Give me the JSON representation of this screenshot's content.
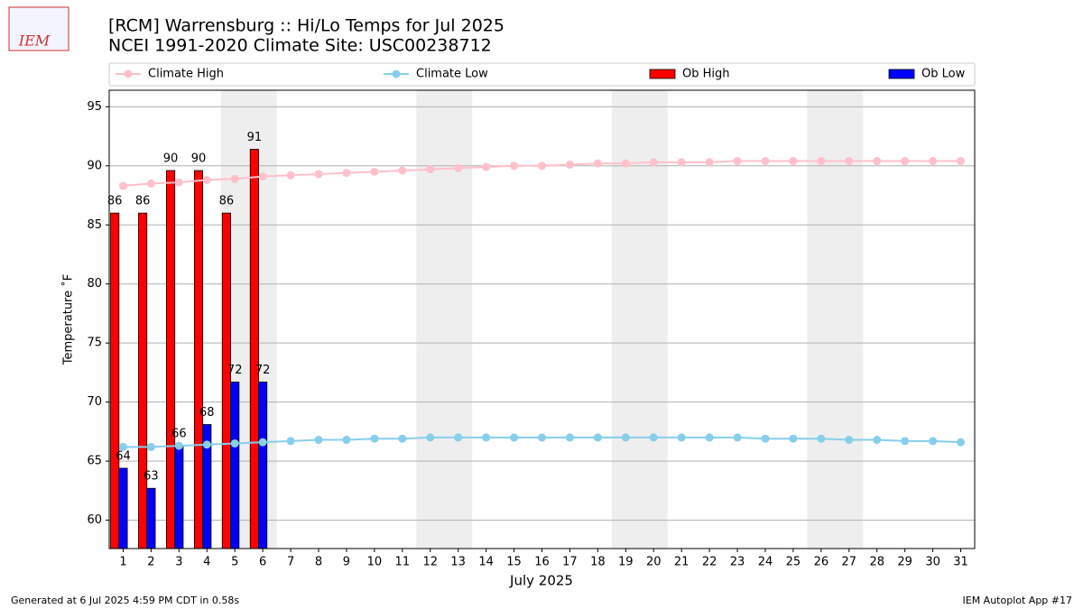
{
  "logo": "IEM",
  "footer_left": "Generated at 6 Jul 2025 4:59 PM CDT in 0.58s",
  "footer_right": "IEM Autoplot App #17",
  "chart_data": {
    "type": "bar_line",
    "title": "[RCM] Warrensburg :: Hi/Lo Temps for Jul 2025",
    "subtitle": "NCEI 1991-2020 Climate Site: USC00238712",
    "x_label": "July 2025",
    "y_label": "Temperature ˚F",
    "x": [
      1,
      2,
      3,
      4,
      5,
      6,
      7,
      8,
      9,
      10,
      11,
      12,
      13,
      14,
      15,
      16,
      17,
      18,
      19,
      20,
      21,
      22,
      23,
      24,
      25,
      26,
      27,
      28,
      29,
      30,
      31
    ],
    "xlim": [
      0.5,
      31.5
    ],
    "xticks": [
      1,
      2,
      3,
      4,
      5,
      6,
      7,
      8,
      9,
      10,
      11,
      12,
      13,
      14,
      15,
      16,
      17,
      18,
      19,
      20,
      21,
      22,
      23,
      24,
      25,
      26,
      27,
      28,
      29,
      30,
      31
    ],
    "ylim": [
      57.6,
      96.4
    ],
    "yticks": [
      60,
      65,
      70,
      75,
      80,
      85,
      90,
      95
    ],
    "grid": true,
    "shaded": [
      [
        4.5,
        6.5
      ],
      [
        11.5,
        13.5
      ],
      [
        18.5,
        20.5
      ],
      [
        25.5,
        27.5
      ]
    ],
    "series": [
      {
        "name": "Climate High",
        "kind": "line",
        "color": "#ffc0cb",
        "values": [
          88.3,
          88.5,
          88.6,
          88.8,
          88.9,
          89.1,
          89.2,
          89.3,
          89.4,
          89.5,
          89.6,
          89.7,
          89.8,
          89.9,
          90.0,
          90.0,
          90.1,
          90.2,
          90.2,
          90.3,
          90.3,
          90.3,
          90.4,
          90.4,
          90.4,
          90.4,
          90.4,
          90.4,
          90.4,
          90.4,
          90.4
        ]
      },
      {
        "name": "Climate Low",
        "kind": "line",
        "color": "#87ceeb",
        "values": [
          66.2,
          66.2,
          66.3,
          66.4,
          66.5,
          66.6,
          66.7,
          66.8,
          66.8,
          66.9,
          66.9,
          67.0,
          67.0,
          67.0,
          67.0,
          67.0,
          67.0,
          67.0,
          67.0,
          67.0,
          67.0,
          67.0,
          67.0,
          66.9,
          66.9,
          66.9,
          66.8,
          66.8,
          66.7,
          66.7,
          66.6
        ]
      },
      {
        "name": "Ob High",
        "kind": "bar",
        "color": "#ff0000",
        "values": [
          86,
          86,
          89.6,
          89.6,
          86,
          91.4,
          null,
          null,
          null,
          null,
          null,
          null,
          null,
          null,
          null,
          null,
          null,
          null,
          null,
          null,
          null,
          null,
          null,
          null,
          null,
          null,
          null,
          null,
          null,
          null,
          null
        ],
        "value_labels": [
          "86",
          "86",
          "90",
          "90",
          "86",
          "91",
          null,
          null,
          null,
          null,
          null,
          null,
          null,
          null,
          null,
          null,
          null,
          null,
          null,
          null,
          null,
          null,
          null,
          null,
          null,
          null,
          null,
          null,
          null,
          null,
          null
        ]
      },
      {
        "name": "Ob Low",
        "kind": "bar",
        "color": "#0000ff",
        "values": [
          64.4,
          62.7,
          66.3,
          68.1,
          71.7,
          71.7,
          null,
          null,
          null,
          null,
          null,
          null,
          null,
          null,
          null,
          null,
          null,
          null,
          null,
          null,
          null,
          null,
          null,
          null,
          null,
          null,
          null,
          null,
          null,
          null,
          null
        ],
        "value_labels": [
          "64",
          "63",
          "66",
          "68",
          "72",
          "72",
          null,
          null,
          null,
          null,
          null,
          null,
          null,
          null,
          null,
          null,
          null,
          null,
          null,
          null,
          null,
          null,
          null,
          null,
          null,
          null,
          null,
          null,
          null,
          null,
          null
        ]
      }
    ]
  }
}
